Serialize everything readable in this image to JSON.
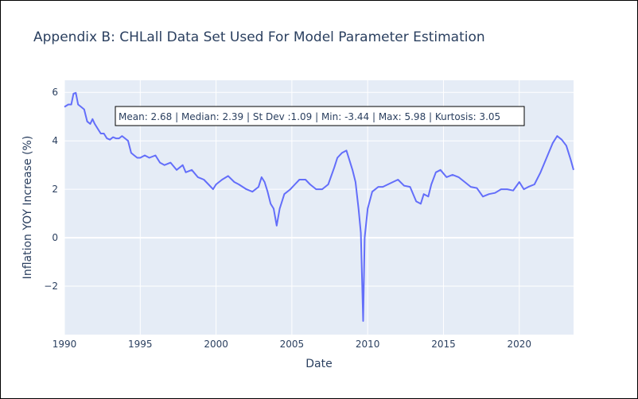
{
  "chart_data": {
    "type": "line",
    "title": "Appendix B: CHLall Data Set Used For Model Parameter Estimation",
    "xlabel": "Date",
    "ylabel": "Inflation YOY Increase (%)",
    "xlim": [
      1990.0,
      2023.58
    ],
    "ylim": [
      -4.0,
      6.5
    ],
    "x_ticks": [
      1990,
      1995,
      2000,
      2005,
      2010,
      2015,
      2020
    ],
    "x_tick_labels": [
      "1990",
      "1995",
      "2000",
      "2005",
      "2010",
      "2015",
      "2020"
    ],
    "y_ticks": [
      -2,
      0,
      2,
      4,
      6
    ],
    "y_tick_labels": [
      "−2",
      "0",
      "2",
      "4",
      "6"
    ],
    "grid": true,
    "line_color": "#636efa",
    "plot_bg": "#e5ecf6",
    "annotation": "Mean: 2.68 | Median: 2.39 | St Dev :1.09 | Min: -3.44 | Max: 5.98 | Kurtosis: 3.05",
    "series": [
      {
        "x": [
          1990.0,
          1990.25,
          1990.45,
          1990.6,
          1990.75,
          1990.9,
          1991.1,
          1991.3,
          1991.5,
          1991.7,
          1991.85,
          1992.0,
          1992.2,
          1992.4,
          1992.6,
          1992.8,
          1993.0,
          1993.2,
          1993.4,
          1993.6,
          1993.8,
          1994.0,
          1994.2,
          1994.4,
          1994.6,
          1994.8,
          1995.0,
          1995.3,
          1995.6,
          1996.0,
          1996.3,
          1996.6,
          1997.0,
          1997.4,
          1997.8,
          1998.0,
          1998.4,
          1998.8,
          1999.2,
          1999.5,
          1999.8,
          2000.0,
          2000.4,
          2000.8,
          2001.2,
          2001.5,
          2002.0,
          2002.4,
          2002.8,
          2003.0,
          2003.2,
          2003.4,
          2003.6,
          2003.8,
          2004.0,
          2004.2,
          2004.5,
          2004.9,
          2005.2,
          2005.5,
          2005.9,
          2006.2,
          2006.6,
          2007.0,
          2007.4,
          2007.8,
          2008.0,
          2008.3,
          2008.6,
          2008.8,
          2009.0,
          2009.2,
          2009.4,
          2009.55,
          2009.7,
          2009.8,
          2010.0,
          2010.3,
          2010.7,
          2011.0,
          2011.5,
          2012.0,
          2012.4,
          2012.8,
          2013.2,
          2013.5,
          2013.7,
          2014.0,
          2014.2,
          2014.5,
          2014.8,
          2015.2,
          2015.6,
          2016.0,
          2016.4,
          2016.8,
          2017.2,
          2017.6,
          2018.0,
          2018.4,
          2018.8,
          2019.2,
          2019.6,
          2020.0,
          2020.3,
          2020.6,
          2021.0,
          2021.4,
          2021.8,
          2022.2,
          2022.5,
          2022.8,
          2023.1,
          2023.4,
          2023.58
        ],
        "y": [
          5.4,
          5.5,
          5.5,
          5.95,
          5.98,
          5.5,
          5.4,
          5.3,
          4.8,
          4.7,
          4.9,
          4.7,
          4.5,
          4.3,
          4.3,
          4.1,
          4.05,
          4.15,
          4.1,
          4.1,
          4.2,
          4.1,
          4.0,
          3.5,
          3.4,
          3.3,
          3.3,
          3.4,
          3.3,
          3.4,
          3.1,
          3.0,
          3.1,
          2.8,
          3.0,
          2.7,
          2.8,
          2.5,
          2.4,
          2.2,
          2.0,
          2.2,
          2.4,
          2.55,
          2.3,
          2.2,
          2.0,
          1.9,
          2.1,
          2.5,
          2.3,
          1.9,
          1.4,
          1.2,
          0.5,
          1.2,
          1.8,
          2.0,
          2.2,
          2.4,
          2.4,
          2.2,
          2.0,
          2.0,
          2.2,
          2.9,
          3.3,
          3.5,
          3.6,
          3.2,
          2.8,
          2.3,
          1.2,
          0.2,
          -3.44,
          0.0,
          1.2,
          1.9,
          2.1,
          2.1,
          2.25,
          2.4,
          2.15,
          2.1,
          1.5,
          1.4,
          1.8,
          1.7,
          2.2,
          2.7,
          2.8,
          2.5,
          2.6,
          2.5,
          2.3,
          2.1,
          2.05,
          1.7,
          1.8,
          1.85,
          2.0,
          2.0,
          1.95,
          2.3,
          2.0,
          2.1,
          2.2,
          2.7,
          3.3,
          3.9,
          4.2,
          4.05,
          3.8,
          3.2,
          2.8
        ]
      }
    ]
  }
}
